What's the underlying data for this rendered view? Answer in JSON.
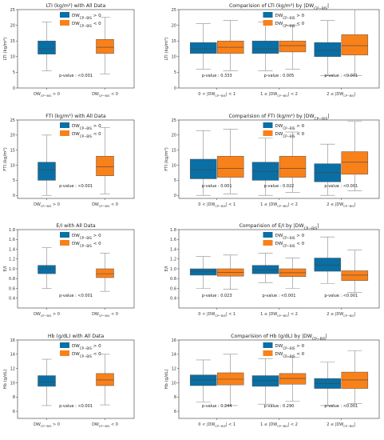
{
  "colors": {
    "group1": "#0a6fa4",
    "group2": "#f9811a"
  },
  "legend": {
    "group1": "DW_{CP−BIS} > 0",
    "group2": "DW_{CP−BIS} < 0"
  },
  "chart_data": [
    {
      "id": "lti-all",
      "type": "box",
      "title": "LTI (kg/m²) with All Data",
      "ylabel": "LTI (kg/m²)",
      "ylim": [
        0,
        25
      ],
      "yticks": [
        0,
        5,
        10,
        15,
        20,
        25
      ],
      "categories": [
        "DW_{CP−BIS} > 0",
        "DW_{CP−BIS} < 0"
      ],
      "boxes": [
        {
          "series": "group1",
          "whislo": 5.5,
          "q1": 10.8,
          "med": 12.5,
          "q3": 15.0,
          "whishi": 21.0
        },
        {
          "series": "group2",
          "whislo": 4.5,
          "q1": 11.0,
          "med": 13.0,
          "q3": 15.5,
          "whishi": 22.5
        }
      ],
      "pvalues": [
        "p-value : <0.001"
      ],
      "legend_position": "top"
    },
    {
      "id": "lti-compare",
      "type": "box",
      "title": "Comparision of LTI (kg/m²) by |DW_{CP−BIS}|",
      "ylabel": "LTI (kg/m²)",
      "ylim": [
        0,
        25
      ],
      "yticks": [
        0,
        5,
        10,
        15,
        20,
        25
      ],
      "categories": [
        "0 < |DW_{CP−BIS}| < 1",
        "1 ≤ |DW_{CP−BIS}| < 2",
        "2 ≤ |DW_{CP−BIS}|"
      ],
      "boxes": [
        {
          "series": "group1",
          "whislo": 6.0,
          "q1": 11.0,
          "med": 12.5,
          "q3": 14.5,
          "whishi": 20.5
        },
        {
          "series": "group2",
          "whislo": 5.5,
          "q1": 11.0,
          "med": 13.0,
          "q3": 15.0,
          "whishi": 21.5
        },
        {
          "series": "group1",
          "whislo": 5.5,
          "q1": 11.0,
          "med": 12.5,
          "q3": 15.0,
          "whishi": 21.0
        },
        {
          "series": "group2",
          "whislo": 6.0,
          "q1": 11.5,
          "med": 13.5,
          "q3": 15.0,
          "whishi": 20.0
        },
        {
          "series": "group1",
          "whislo": 4.0,
          "q1": 10.0,
          "med": 12.0,
          "q3": 14.5,
          "whishi": 21.5
        },
        {
          "series": "group2",
          "whislo": 4.0,
          "q1": 10.5,
          "med": 13.5,
          "q3": 17.0,
          "whishi": 25.0
        }
      ],
      "pvalues": [
        "p-value : 0.333",
        "p-value : 0.005",
        "p-value : <0.001"
      ],
      "legend_position": "top"
    },
    {
      "id": "fti-all",
      "type": "box",
      "title": "FTI (kg/m²) with All Data",
      "ylabel": "FTI (kg/m²)",
      "ylim": [
        -1,
        25
      ],
      "yticks": [
        0,
        5,
        10,
        15,
        20,
        25
      ],
      "categories": [
        "DW_{CP−BIS} > 0",
        "DW_{CP−BIS} < 0"
      ],
      "boxes": [
        {
          "series": "group1",
          "whislo": 0,
          "q1": 5.0,
          "med": 8.5,
          "q3": 11.0,
          "whishi": 20.0
        },
        {
          "series": "group2",
          "whislo": 0.5,
          "q1": 6.5,
          "med": 9.5,
          "q3": 13.0,
          "whishi": 22.5
        }
      ],
      "pvalues": [
        "p-value : <0.001"
      ],
      "legend_position": "top"
    },
    {
      "id": "fti-compare",
      "type": "box",
      "title": "Comparision of FTI (kg/m²) by |DW_{CP−BIS}|",
      "ylabel": "FTI (kg/m²)",
      "ylim": [
        -1,
        25
      ],
      "yticks": [
        0,
        5,
        10,
        15,
        20,
        25
      ],
      "categories": [
        "0 < |DW_{CP−BIS}| < 1",
        "1 ≤ |DW_{CP−BIS}| < 2",
        "2 ≤ |DW_{CP−BIS}|"
      ],
      "boxes": [
        {
          "series": "group1",
          "whislo": 0,
          "q1": 5.5,
          "med": 8.5,
          "q3": 12.0,
          "whishi": 21.5
        },
        {
          "series": "group2",
          "whislo": 0.5,
          "q1": 6.0,
          "med": 9.0,
          "q3": 13.0,
          "whishi": 22.0
        },
        {
          "series": "group1",
          "whislo": 0,
          "q1": 5.0,
          "med": 8.0,
          "q3": 11.0,
          "whishi": 19.0
        },
        {
          "series": "group2",
          "whislo": 1.0,
          "q1": 6.0,
          "med": 9.0,
          "q3": 13.0,
          "whishi": 21.0
        },
        {
          "series": "group1",
          "whislo": 0,
          "q1": 4.5,
          "med": 7.5,
          "q3": 10.5,
          "whishi": 17.0
        },
        {
          "series": "group2",
          "whislo": 1.5,
          "q1": 7.0,
          "med": 11.0,
          "q3": 14.5,
          "whishi": 24.5
        }
      ],
      "pvalues": [
        "p-value : 0.001",
        "p-value : 0.022",
        "p-value : <0.001"
      ],
      "legend_position": "top"
    },
    {
      "id": "ei-all",
      "type": "box",
      "title": "E/I with All Data",
      "ylabel": "E/I",
      "ylim": [
        0.2,
        1.8
      ],
      "yticks": [
        0.4,
        0.6,
        0.8,
        1.0,
        1.2,
        1.4,
        1.6,
        1.8
      ],
      "categories": [
        "DW_{CP−BIS} > 0",
        "DW_{CP−BIS} < 0"
      ],
      "boxes": [
        {
          "series": "group1",
          "whislo": 0.6,
          "q1": 0.9,
          "med": 1.0,
          "q3": 1.07,
          "whishi": 1.43
        },
        {
          "series": "group2",
          "whislo": 0.54,
          "q1": 0.82,
          "med": 0.9,
          "q3": 1.0,
          "whishi": 1.32
        }
      ],
      "pvalues": [
        "p-value : <0.001"
      ],
      "legend_position": "top"
    },
    {
      "id": "ei-compare",
      "type": "box",
      "title": "Comparision of E/I by |DW_{CP−BIS}|",
      "ylabel": "E/I",
      "ylim": [
        0.2,
        1.8
      ],
      "yticks": [
        0.4,
        0.6,
        0.8,
        1.0,
        1.2,
        1.4,
        1.6,
        1.8
      ],
      "categories": [
        "0 < |DW_{CP−BIS}| < 1",
        "1 ≤ |DW_{CP−BIS}| < 2",
        "2 ≤ |DW_{CP−BIS}|"
      ],
      "boxes": [
        {
          "series": "group1",
          "whislo": 0.6,
          "q1": 0.87,
          "med": 0.95,
          "q3": 1.0,
          "whishi": 1.25
        },
        {
          "series": "group2",
          "whislo": 0.58,
          "q1": 0.85,
          "med": 0.93,
          "q3": 1.0,
          "whishi": 1.28
        },
        {
          "series": "group1",
          "whislo": 0.72,
          "q1": 0.9,
          "med": 0.98,
          "q3": 1.07,
          "whishi": 1.32
        },
        {
          "series": "group2",
          "whislo": 0.6,
          "q1": 0.84,
          "med": 0.92,
          "q3": 1.0,
          "whishi": 1.22
        },
        {
          "series": "group1",
          "whislo": 0.7,
          "q1": 0.95,
          "med": 1.07,
          "q3": 1.22,
          "whishi": 1.65
        },
        {
          "series": "group2",
          "whislo": 0.52,
          "q1": 0.76,
          "med": 0.87,
          "q3": 0.96,
          "whishi": 1.38
        }
      ],
      "pvalues": [
        "p-value : 0.023",
        "p-value : <0.001",
        "p-value : <0.001"
      ],
      "legend_position": "top"
    },
    {
      "id": "hb-all",
      "type": "box",
      "title": "Hb (g/dL) with All Data",
      "ylabel": "Hb (g/dL)",
      "ylim": [
        5,
        16
      ],
      "yticks": [
        6,
        8,
        10,
        12,
        14,
        16
      ],
      "categories": [
        "DW_{CP−BIS} > 0",
        "DW_{CP−BIS} < 0"
      ],
      "boxes": [
        {
          "series": "group1",
          "whislo": 6.8,
          "q1": 9.5,
          "med": 10.1,
          "q3": 11.0,
          "whishi": 13.3
        },
        {
          "series": "group2",
          "whislo": 6.9,
          "q1": 9.6,
          "med": 10.4,
          "q3": 11.3,
          "whishi": 14.0
        }
      ],
      "pvalues": [
        "p-value : <0.001"
      ],
      "legend_position": "top"
    },
    {
      "id": "hb-compare",
      "type": "box",
      "title": "Comparision of Hb (g/dL) by |DW_{CP−BIS}|",
      "ylabel": "Hb (g/dL)",
      "ylim": [
        5,
        16
      ],
      "yticks": [
        6,
        8,
        10,
        12,
        14,
        16
      ],
      "categories": [
        "0 < |DW_{CP−BIS}| < 1",
        "1 ≤ |DW_{CP−BIS}| < 2",
        "2 ≤ |DW_{CP−BIS}|"
      ],
      "boxes": [
        {
          "series": "group1",
          "whislo": 7.3,
          "q1": 9.6,
          "med": 10.4,
          "q3": 11.1,
          "whishi": 13.2
        },
        {
          "series": "group2",
          "whislo": 6.8,
          "q1": 9.7,
          "med": 10.5,
          "q3": 11.4,
          "whishi": 14.0
        },
        {
          "series": "group1",
          "whislo": 7.0,
          "q1": 9.5,
          "med": 10.3,
          "q3": 11.0,
          "whishi": 13.4
        },
        {
          "series": "group2",
          "whislo": 7.4,
          "q1": 9.8,
          "med": 10.6,
          "q3": 11.3,
          "whishi": 13.6
        },
        {
          "series": "group1",
          "whislo": 6.8,
          "q1": 9.2,
          "med": 9.9,
          "q3": 10.6,
          "whishi": 12.9
        },
        {
          "series": "group2",
          "whislo": 7.1,
          "q1": 9.2,
          "med": 10.4,
          "q3": 11.5,
          "whishi": 14.5
        }
      ],
      "pvalues": [
        "p-value : 0.244",
        "p-value : 0.290",
        "p-value : <0.001"
      ],
      "legend_position": "top"
    }
  ]
}
